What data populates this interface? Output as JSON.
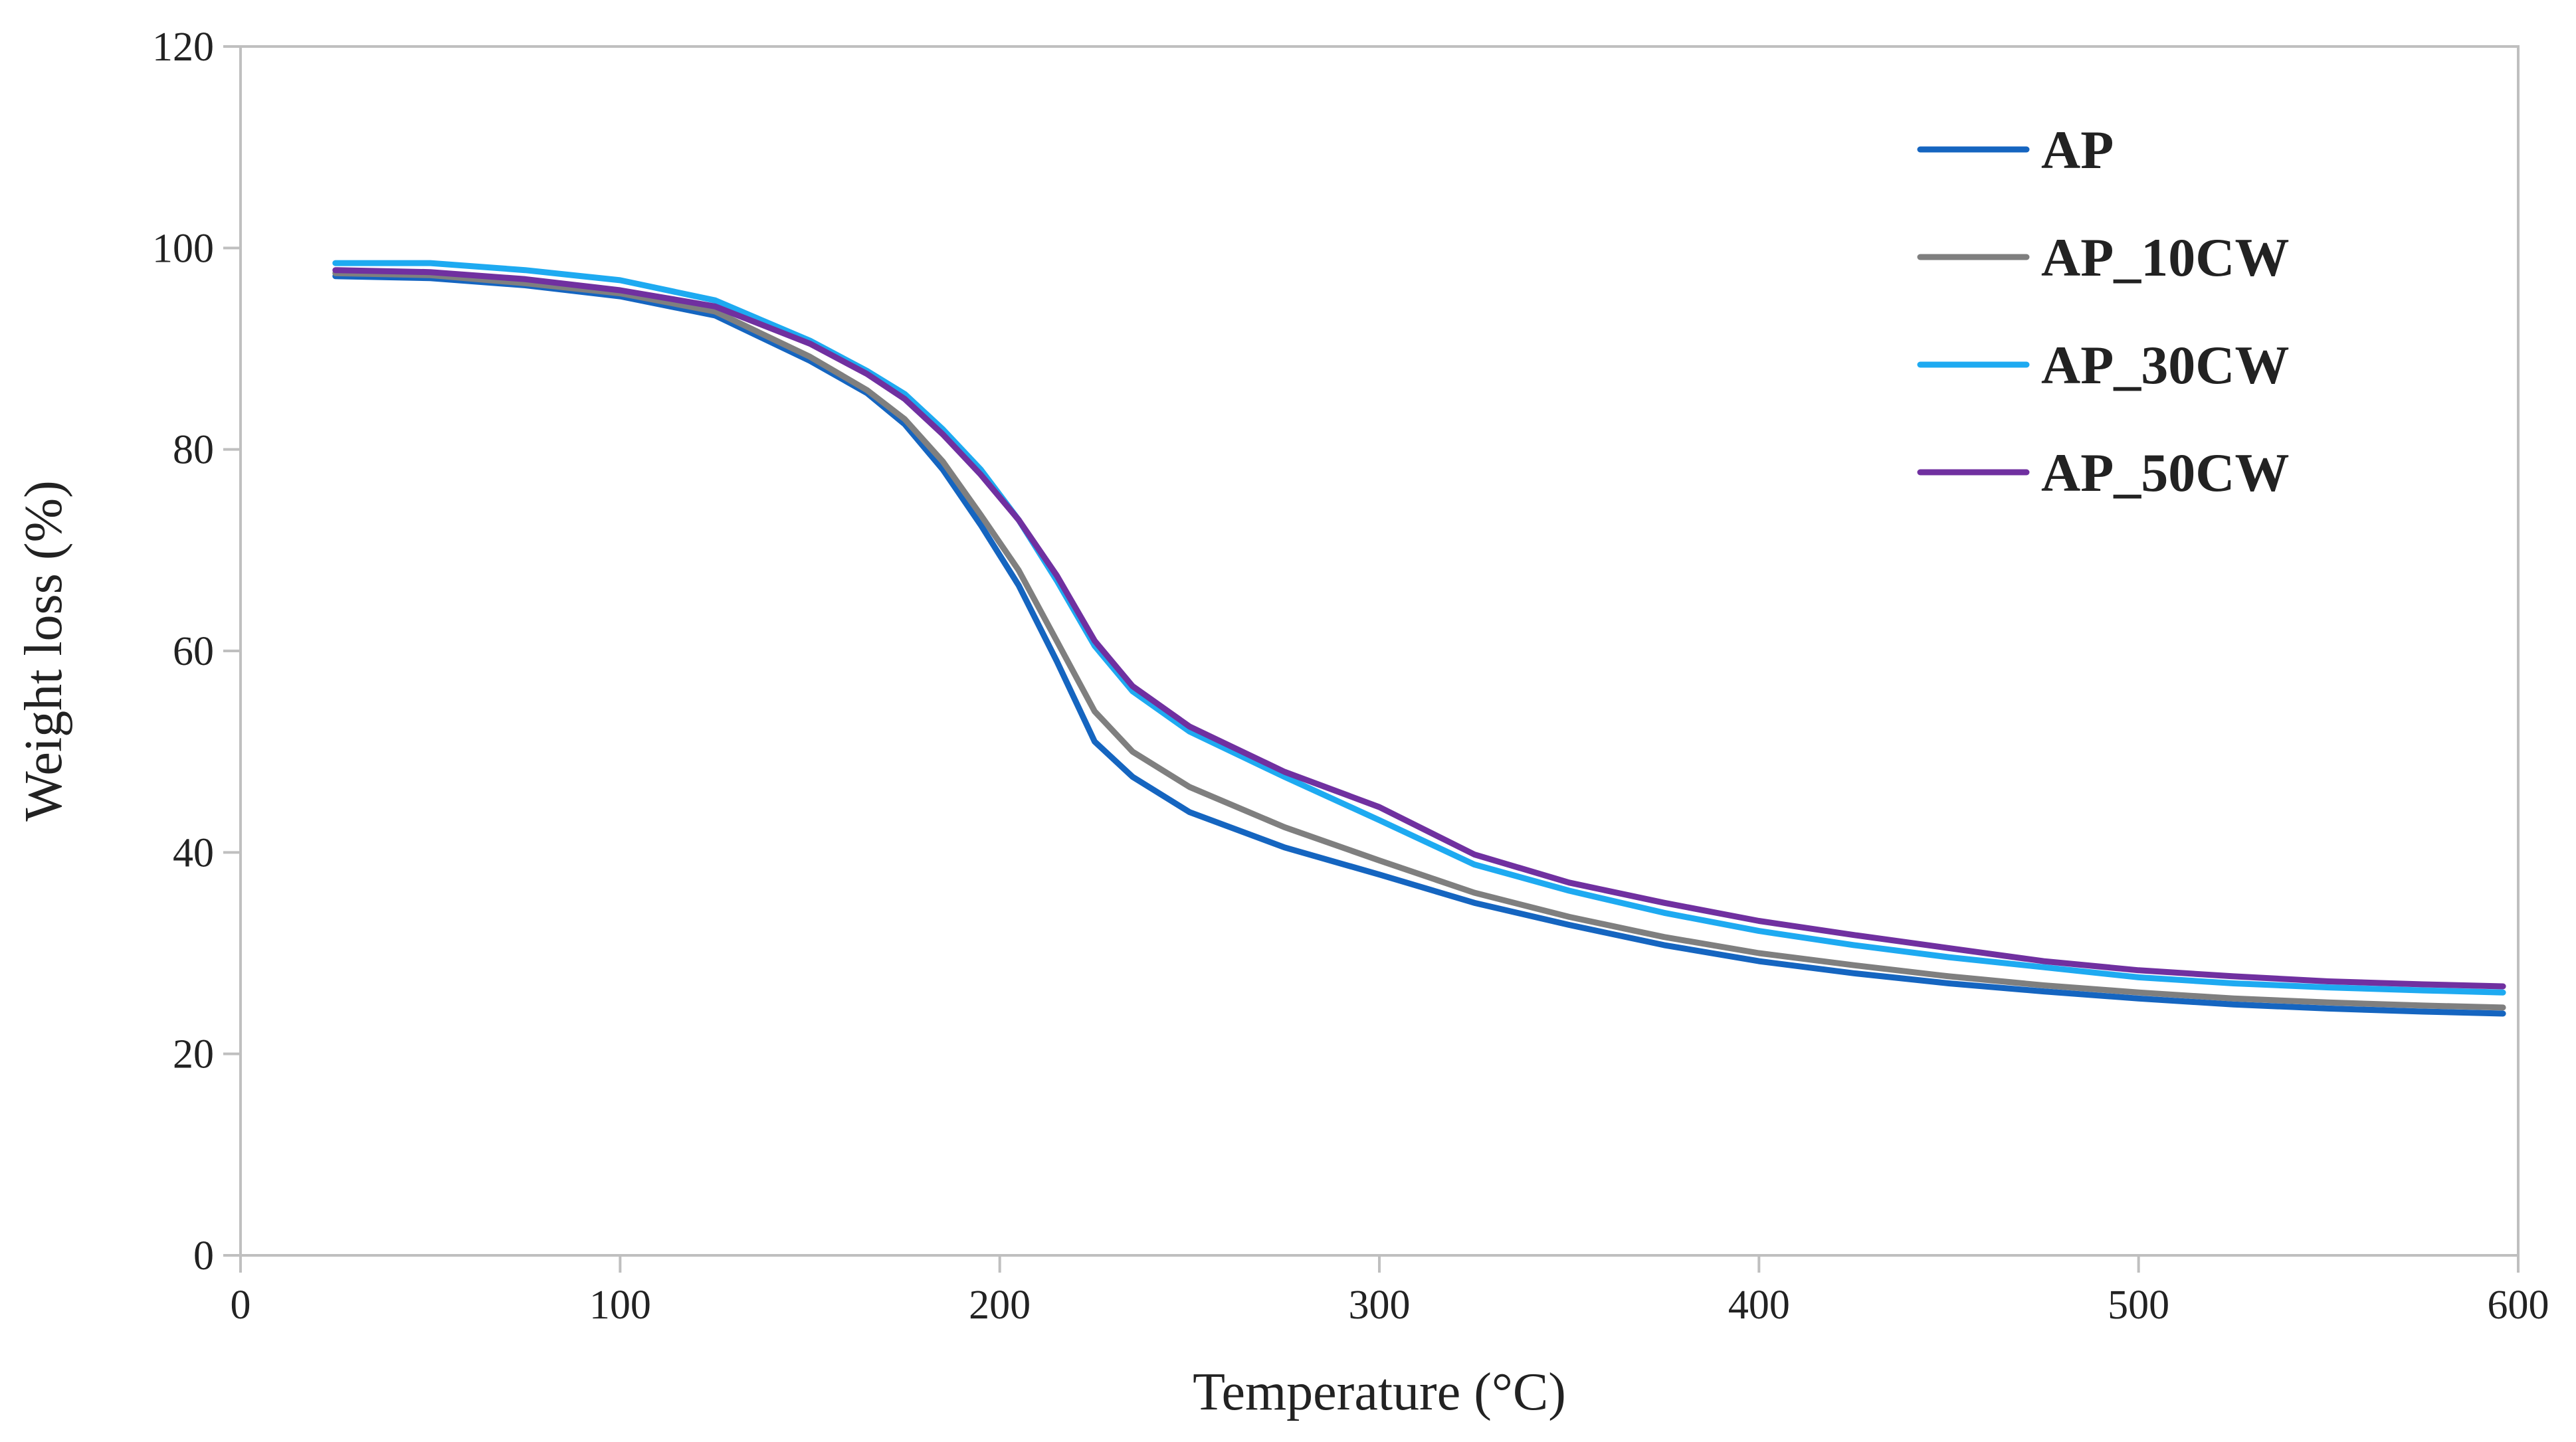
{
  "chart_data": {
    "type": "line",
    "title": "",
    "xlabel": "Temperature (°C)",
    "ylabel": "Weight loss (%)",
    "xlim": [
      0,
      600
    ],
    "ylim": [
      0,
      120
    ],
    "xticks": [
      0,
      100,
      200,
      300,
      400,
      500,
      600
    ],
    "yticks": [
      0,
      20,
      40,
      60,
      80,
      100,
      120
    ],
    "grid": false,
    "legend_position": "top-right",
    "series": [
      {
        "name": "AP",
        "color": "#1565C0",
        "points": [
          [
            25,
            97.2
          ],
          [
            50,
            97.0
          ],
          [
            75,
            96.3
          ],
          [
            100,
            95.2
          ],
          [
            125,
            93.3
          ],
          [
            150,
            88.8
          ],
          [
            165,
            85.6
          ],
          [
            175,
            82.5
          ],
          [
            185,
            78.0
          ],
          [
            195,
            72.5
          ],
          [
            205,
            66.5
          ],
          [
            215,
            59.0
          ],
          [
            225,
            51.0
          ],
          [
            235,
            47.5
          ],
          [
            250,
            44.0
          ],
          [
            275,
            40.5
          ],
          [
            300,
            37.8
          ],
          [
            325,
            35.0
          ],
          [
            350,
            32.8
          ],
          [
            375,
            30.8
          ],
          [
            400,
            29.2
          ],
          [
            425,
            28.0
          ],
          [
            450,
            27.0
          ],
          [
            475,
            26.2
          ],
          [
            500,
            25.5
          ],
          [
            525,
            24.9
          ],
          [
            550,
            24.5
          ],
          [
            575,
            24.2
          ],
          [
            596,
            24.0
          ]
        ]
      },
      {
        "name": "AP_10CW",
        "color": "#7F7F7F",
        "points": [
          [
            25,
            97.5
          ],
          [
            50,
            97.3
          ],
          [
            75,
            96.5
          ],
          [
            100,
            95.5
          ],
          [
            125,
            93.7
          ],
          [
            150,
            89.2
          ],
          [
            165,
            85.9
          ],
          [
            175,
            83.0
          ],
          [
            185,
            78.8
          ],
          [
            195,
            73.5
          ],
          [
            205,
            68.0
          ],
          [
            215,
            61.0
          ],
          [
            225,
            54.0
          ],
          [
            235,
            50.0
          ],
          [
            250,
            46.5
          ],
          [
            275,
            42.5
          ],
          [
            300,
            39.2
          ],
          [
            325,
            36.0
          ],
          [
            350,
            33.6
          ],
          [
            375,
            31.6
          ],
          [
            400,
            30.0
          ],
          [
            425,
            28.8
          ],
          [
            450,
            27.7
          ],
          [
            475,
            26.8
          ],
          [
            500,
            26.1
          ],
          [
            525,
            25.5
          ],
          [
            550,
            25.1
          ],
          [
            575,
            24.8
          ],
          [
            596,
            24.6
          ]
        ]
      },
      {
        "name": "AP_30CW",
        "color": "#1EAAF1",
        "points": [
          [
            25,
            98.5
          ],
          [
            50,
            98.5
          ],
          [
            75,
            97.8
          ],
          [
            100,
            96.8
          ],
          [
            125,
            94.8
          ],
          [
            150,
            90.8
          ],
          [
            165,
            87.8
          ],
          [
            175,
            85.5
          ],
          [
            185,
            82.0
          ],
          [
            195,
            78.0
          ],
          [
            205,
            73.0
          ],
          [
            215,
            67.0
          ],
          [
            225,
            60.5
          ],
          [
            235,
            56.0
          ],
          [
            250,
            52.0
          ],
          [
            275,
            47.5
          ],
          [
            300,
            43.2
          ],
          [
            325,
            38.8
          ],
          [
            350,
            36.2
          ],
          [
            375,
            34.0
          ],
          [
            400,
            32.2
          ],
          [
            425,
            30.8
          ],
          [
            450,
            29.6
          ],
          [
            475,
            28.6
          ],
          [
            500,
            27.6
          ],
          [
            525,
            27.0
          ],
          [
            550,
            26.6
          ],
          [
            575,
            26.3
          ],
          [
            596,
            26.1
          ]
        ]
      },
      {
        "name": "AP_50CW",
        "color": "#7030A0",
        "points": [
          [
            25,
            97.8
          ],
          [
            50,
            97.6
          ],
          [
            75,
            96.9
          ],
          [
            100,
            95.8
          ],
          [
            125,
            94.2
          ],
          [
            150,
            90.5
          ],
          [
            165,
            87.5
          ],
          [
            175,
            85.0
          ],
          [
            185,
            81.5
          ],
          [
            195,
            77.5
          ],
          [
            205,
            73.0
          ],
          [
            215,
            67.5
          ],
          [
            225,
            61.0
          ],
          [
            235,
            56.5
          ],
          [
            250,
            52.5
          ],
          [
            275,
            48.0
          ],
          [
            300,
            44.5
          ],
          [
            325,
            39.8
          ],
          [
            350,
            37.0
          ],
          [
            375,
            35.0
          ],
          [
            400,
            33.2
          ],
          [
            425,
            31.8
          ],
          [
            450,
            30.5
          ],
          [
            475,
            29.2
          ],
          [
            500,
            28.3
          ],
          [
            525,
            27.7
          ],
          [
            550,
            27.2
          ],
          [
            575,
            26.9
          ],
          [
            596,
            26.7
          ]
        ]
      }
    ]
  }
}
